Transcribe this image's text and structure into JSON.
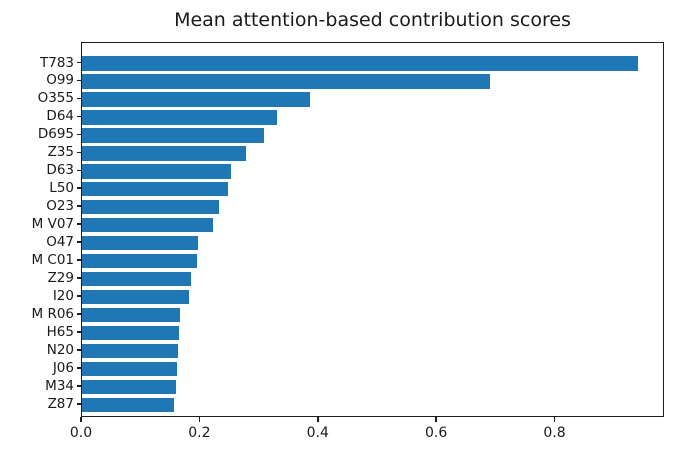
{
  "chart_data": {
    "type": "bar",
    "orientation": "horizontal",
    "title": "Mean attention-based contribution scores",
    "xlabel": "",
    "ylabel": "",
    "categories": [
      "T783",
      "O99",
      "O355",
      "D64",
      "D695",
      "Z35",
      "D63",
      "L50",
      "O23",
      "M V07",
      "O47",
      "M C01",
      "Z29",
      "I20",
      "M R06",
      "H65",
      "N20",
      "J06",
      "M34",
      "Z87"
    ],
    "values": [
      0.94,
      0.69,
      0.385,
      0.33,
      0.307,
      0.277,
      0.252,
      0.246,
      0.231,
      0.221,
      0.196,
      0.195,
      0.184,
      0.18,
      0.165,
      0.164,
      0.162,
      0.16,
      0.158,
      0.156
    ],
    "xlim": [
      0,
      0.985
    ],
    "xticks": [
      0,
      0.2,
      0.4,
      0.6,
      0.8
    ],
    "xtick_labels": [
      "0.0",
      "0.2",
      "0.4",
      "0.6",
      "0.8"
    ],
    "grid": false,
    "legend_position": "none",
    "bar_color": "#1f77b4",
    "spine_color": "#1c1c1c",
    "text_color": "#1a1a1a",
    "background_color": "#ffffff"
  }
}
